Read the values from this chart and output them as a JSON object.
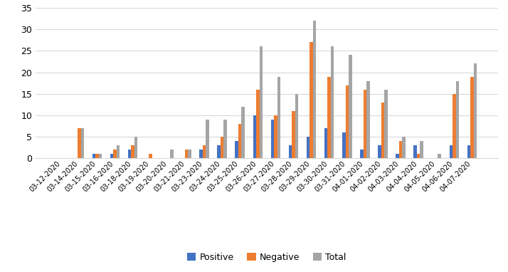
{
  "dates": [
    "03-12-2020",
    "03-14-2020",
    "03-15-2020",
    "03-16-2020",
    "03-18-2020",
    "03-19-2020",
    "03-20-2020",
    "03-21-2020",
    "03-23-2020",
    "03-24-2020",
    "03-25-2020",
    "03-26-2020",
    "03-27-2020",
    "03-28-2020",
    "03-29-2020",
    "03-30-2020",
    "03-31-2020",
    "04-01-2020",
    "04-02-2020",
    "04-03-2020",
    "04-04-2020",
    "04-05-2020",
    "04-06-2020",
    "04-07-2020"
  ],
  "positive": [
    0,
    0,
    1,
    1,
    2,
    0,
    0,
    0,
    2,
    3,
    4,
    10,
    9,
    3,
    5,
    7,
    6,
    2,
    3,
    1,
    3,
    0,
    3,
    3
  ],
  "negative": [
    0,
    7,
    1,
    2,
    3,
    1,
    0,
    2,
    3,
    5,
    8,
    16,
    10,
    11,
    27,
    19,
    17,
    16,
    13,
    4,
    1,
    0,
    15,
    19
  ],
  "total": [
    0,
    7,
    1,
    3,
    5,
    0,
    2,
    2,
    9,
    9,
    12,
    26,
    19,
    15,
    32,
    26,
    24,
    18,
    16,
    5,
    4,
    1,
    18,
    22
  ],
  "positive_color": "#4472c4",
  "negative_color": "#ed7d31",
  "total_color": "#a5a5a5",
  "bar_width": 0.18,
  "ylim": [
    0,
    35
  ],
  "yticks": [
    0,
    5,
    10,
    15,
    20,
    25,
    30,
    35
  ],
  "legend_labels": [
    "Positive",
    "Negative",
    "Total"
  ],
  "background_color": "#ffffff",
  "grid_color": "#d9d9d9"
}
